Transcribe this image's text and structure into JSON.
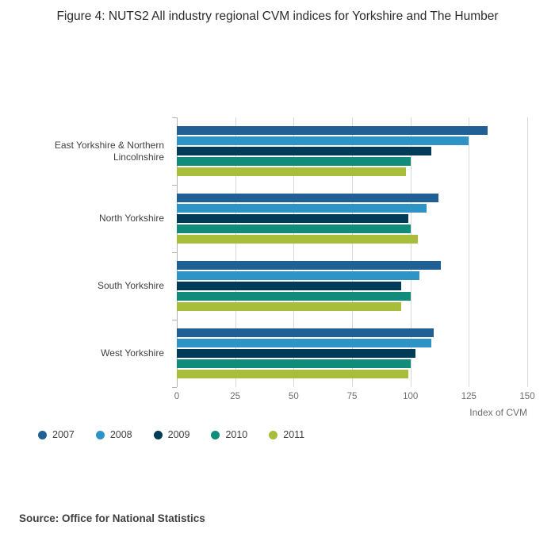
{
  "title": "Figure 4: NUTS2 All industry regional CVM indices for Yorkshire and The Humber",
  "source": "Source: Office for National Statistics",
  "chart_data": {
    "type": "bar",
    "orientation": "horizontal",
    "title": "Figure 4: NUTS2 All industry regional CVM indices for Yorkshire and The Humber",
    "categories": [
      "East Yorkshire & Northern Lincolnshire",
      "North Yorkshire",
      "South Yorkshire",
      "West Yorkshire"
    ],
    "series": [
      {
        "name": "2007",
        "color": "#206095",
        "values": [
          133,
          112,
          113,
          110
        ]
      },
      {
        "name": "2008",
        "color": "#2E94C6",
        "values": [
          125,
          107,
          104,
          109
        ]
      },
      {
        "name": "2009",
        "color": "#003C57",
        "values": [
          109,
          99,
          96,
          102
        ]
      },
      {
        "name": "2010",
        "color": "#118C7B",
        "values": [
          100,
          100,
          100,
          100
        ]
      },
      {
        "name": "2011",
        "color": "#A8BD3A",
        "values": [
          98,
          103,
          96,
          99
        ]
      }
    ],
    "xlabel": "Index of CVM",
    "ylabel": "",
    "xlim": [
      0,
      150
    ],
    "xticks": [
      0,
      25,
      50,
      75,
      100,
      125,
      150
    ],
    "grid": true,
    "legend_position": "bottom"
  }
}
